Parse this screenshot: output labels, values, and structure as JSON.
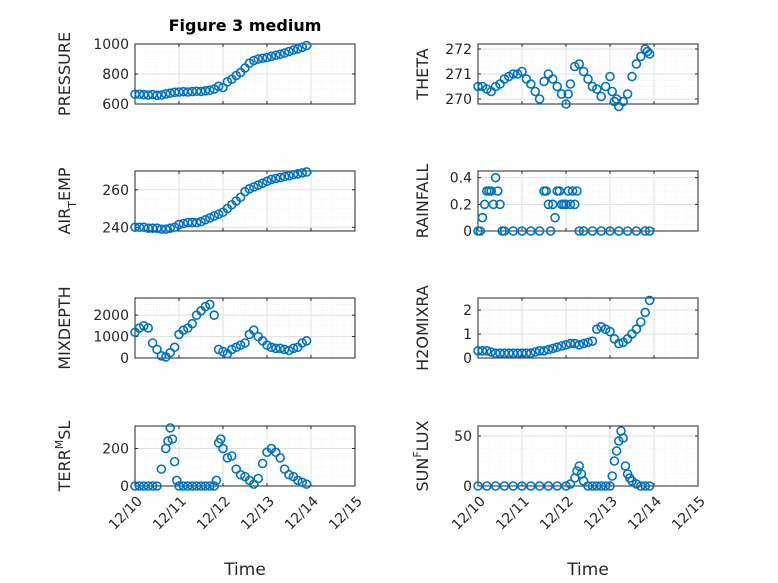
{
  "title": "Figure 3 medium",
  "colors": {
    "marker": "#0072BD",
    "axis": "#262626",
    "grid": "#DFDFDF",
    "minor": "#EDEDED"
  },
  "chart_data": [
    {
      "type": "scatter",
      "id": "pressure",
      "ylabel": "PRESSURE",
      "ylim": [
        600,
        1000
      ],
      "yticks": [
        600,
        800,
        1000
      ],
      "ytick_labels": [
        "600",
        "800",
        "1000"
      ],
      "minor_step": 50,
      "x": [
        0,
        0.1,
        0.2,
        0.3,
        0.4,
        0.5,
        0.6,
        0.7,
        0.8,
        0.9,
        1.0,
        1.1,
        1.2,
        1.3,
        1.4,
        1.5,
        1.6,
        1.7,
        1.8,
        1.9,
        2.0,
        2.1,
        2.2,
        2.3,
        2.4,
        2.5,
        2.6,
        2.7,
        2.8,
        2.9,
        3.0,
        3.1,
        3.2,
        3.3,
        3.4,
        3.5,
        3.6,
        3.7,
        3.8,
        3.9
      ],
      "y": [
        665,
        665,
        662,
        660,
        663,
        658,
        660,
        667,
        672,
        678,
        680,
        682,
        680,
        683,
        685,
        684,
        688,
        692,
        700,
        718,
        710,
        748,
        765,
        790,
        810,
        840,
        872,
        890,
        900,
        905,
        910,
        918,
        925,
        932,
        940,
        950,
        960,
        968,
        978,
        990
      ]
    },
    {
      "type": "scatter",
      "id": "theta",
      "ylabel": "THETA",
      "ylim": [
        269.8,
        272.2
      ],
      "yticks": [
        270,
        271,
        272
      ],
      "ytick_labels": [
        "270",
        "271",
        "272"
      ],
      "minor_step": 0.25,
      "x": [
        0,
        0.1,
        0.2,
        0.3,
        0.4,
        0.5,
        0.6,
        0.7,
        0.8,
        0.9,
        1.0,
        1.1,
        1.2,
        1.3,
        1.4,
        1.5,
        1.6,
        1.7,
        1.8,
        1.9,
        2.0,
        2.05,
        2.1,
        2.2,
        2.3,
        2.4,
        2.5,
        2.6,
        2.7,
        2.8,
        2.9,
        3.0,
        3.05,
        3.1,
        3.15,
        3.2,
        3.3,
        3.4,
        3.5,
        3.6,
        3.7,
        3.8,
        3.85,
        3.9
      ],
      "y": [
        270.5,
        270.5,
        270.4,
        270.3,
        270.5,
        270.6,
        270.8,
        270.9,
        271.0,
        271.0,
        271.1,
        270.8,
        270.6,
        270.3,
        270.0,
        270.7,
        271.0,
        270.8,
        270.5,
        270.2,
        269.8,
        270.2,
        270.6,
        271.3,
        271.4,
        271.1,
        270.8,
        270.5,
        270.4,
        270.1,
        270.5,
        270.9,
        270.3,
        269.9,
        270.0,
        269.7,
        269.9,
        270.2,
        270.9,
        271.4,
        271.7,
        272.0,
        271.9,
        271.8
      ]
    },
    {
      "type": "scatter",
      "id": "air-temp",
      "ylabel": "AIR_TEMP",
      "ylim": [
        238,
        270
      ],
      "yticks": [
        240,
        260
      ],
      "ytick_labels": [
        "240",
        "260"
      ],
      "minor_step": 5,
      "x": [
        0,
        0.1,
        0.2,
        0.3,
        0.4,
        0.5,
        0.6,
        0.7,
        0.8,
        0.9,
        1.0,
        1.1,
        1.2,
        1.3,
        1.4,
        1.5,
        1.6,
        1.7,
        1.8,
        1.9,
        2.0,
        2.1,
        2.2,
        2.3,
        2.4,
        2.5,
        2.6,
        2.7,
        2.8,
        2.9,
        3.0,
        3.1,
        3.2,
        3.3,
        3.4,
        3.5,
        3.6,
        3.7,
        3.8,
        3.9
      ],
      "y": [
        240,
        240,
        240,
        239.5,
        239.5,
        239.5,
        239,
        239,
        239.5,
        240,
        241.5,
        242,
        242.5,
        242.5,
        242.5,
        243,
        244,
        245,
        246,
        247,
        248,
        250,
        252,
        254,
        256,
        259,
        260.5,
        261.5,
        262.5,
        263.5,
        264.5,
        265.5,
        266,
        266.5,
        267,
        267.5,
        268,
        268.5,
        269,
        269.5
      ]
    },
    {
      "type": "scatter",
      "id": "rainfall",
      "ylabel": "RAINFALL",
      "ylim": [
        0,
        0.45
      ],
      "yticks": [
        0,
        0.2,
        0.4
      ],
      "ytick_labels": [
        "0",
        "0.2",
        "0.4"
      ],
      "minor_step": 0.05,
      "x": [
        0,
        0.05,
        0.1,
        0.15,
        0.2,
        0.25,
        0.3,
        0.35,
        0.4,
        0.45,
        0.5,
        0.55,
        0.6,
        0.8,
        1.0,
        1.2,
        1.4,
        1.5,
        1.55,
        1.6,
        1.65,
        1.7,
        1.75,
        1.8,
        1.85,
        1.9,
        1.95,
        2.0,
        2.05,
        2.1,
        2.15,
        2.2,
        2.25,
        2.3,
        2.4,
        2.6,
        2.8,
        3.0,
        3.2,
        3.4,
        3.6,
        3.8,
        3.9
      ],
      "y": [
        0,
        0,
        0.1,
        0.2,
        0.3,
        0.3,
        0.3,
        0.2,
        0.4,
        0.3,
        0.2,
        0,
        0,
        0,
        0,
        0,
        0,
        0.3,
        0.3,
        0.2,
        0,
        0.2,
        0.1,
        0.3,
        0.3,
        0.2,
        0.2,
        0.2,
        0.3,
        0.2,
        0.3,
        0.2,
        0.3,
        0,
        0,
        0,
        0,
        0,
        0,
        0,
        0,
        0,
        0
      ]
    },
    {
      "type": "scatter",
      "id": "mixdepth",
      "ylabel": "MIXDEPTH",
      "ylim": [
        0,
        2800
      ],
      "yticks": [
        0,
        1000,
        2000
      ],
      "ytick_labels": [
        "0",
        "1000",
        "2000"
      ],
      "minor_step": 250,
      "x": [
        0,
        0.1,
        0.2,
        0.3,
        0.4,
        0.5,
        0.6,
        0.7,
        0.8,
        0.9,
        1.0,
        1.1,
        1.2,
        1.3,
        1.4,
        1.5,
        1.6,
        1.7,
        1.8,
        1.9,
        2.0,
        2.1,
        2.2,
        2.3,
        2.4,
        2.5,
        2.6,
        2.7,
        2.8,
        2.9,
        3.0,
        3.1,
        3.2,
        3.3,
        3.4,
        3.5,
        3.6,
        3.7,
        3.8,
        3.9
      ],
      "y": [
        1200,
        1400,
        1500,
        1400,
        700,
        400,
        100,
        50,
        250,
        500,
        1100,
        1300,
        1400,
        1600,
        2000,
        2200,
        2400,
        2500,
        2000,
        400,
        300,
        200,
        400,
        500,
        600,
        700,
        1100,
        1300,
        1000,
        800,
        600,
        500,
        450,
        450,
        400,
        350,
        450,
        500,
        700,
        800
      ]
    },
    {
      "type": "scatter",
      "id": "h2omixra",
      "ylabel": "H2OMIXRA",
      "ylim": [
        0,
        2.5
      ],
      "yticks": [
        0,
        1,
        2
      ],
      "ytick_labels": [
        "0",
        "1",
        "2"
      ],
      "minor_step": 0.25,
      "x": [
        0,
        0.1,
        0.2,
        0.3,
        0.4,
        0.5,
        0.6,
        0.7,
        0.8,
        0.9,
        1.0,
        1.1,
        1.2,
        1.3,
        1.4,
        1.5,
        1.6,
        1.7,
        1.8,
        1.9,
        2.0,
        2.1,
        2.2,
        2.3,
        2.4,
        2.5,
        2.6,
        2.7,
        2.8,
        2.9,
        3.0,
        3.1,
        3.2,
        3.3,
        3.4,
        3.5,
        3.6,
        3.7,
        3.8,
        3.9
      ],
      "y": [
        0.3,
        0.3,
        0.3,
        0.25,
        0.2,
        0.2,
        0.2,
        0.2,
        0.2,
        0.2,
        0.2,
        0.2,
        0.2,
        0.25,
        0.3,
        0.3,
        0.35,
        0.4,
        0.45,
        0.5,
        0.55,
        0.6,
        0.6,
        0.55,
        0.6,
        0.65,
        0.7,
        1.2,
        1.3,
        1.2,
        1.1,
        0.8,
        0.6,
        0.65,
        0.8,
        1.0,
        1.2,
        1.5,
        1.9,
        2.4
      ]
    },
    {
      "type": "scatter",
      "id": "terr-msl",
      "ylabel": "TERR_MSL",
      "ylim": [
        0,
        320
      ],
      "yticks": [
        0,
        200
      ],
      "ytick_labels": [
        "0",
        "200"
      ],
      "minor_step": 50,
      "x": [
        0,
        0.1,
        0.2,
        0.3,
        0.4,
        0.5,
        0.6,
        0.7,
        0.75,
        0.8,
        0.85,
        0.9,
        0.95,
        1.0,
        1.1,
        1.2,
        1.3,
        1.4,
        1.5,
        1.6,
        1.7,
        1.8,
        1.85,
        1.9,
        1.95,
        2.0,
        2.1,
        2.2,
        2.3,
        2.4,
        2.5,
        2.6,
        2.7,
        2.8,
        2.9,
        3.0,
        3.1,
        3.2,
        3.3,
        3.4,
        3.5,
        3.6,
        3.7,
        3.8,
        3.9
      ],
      "y": [
        0,
        0,
        0,
        0,
        0,
        0,
        90,
        200,
        240,
        310,
        250,
        130,
        30,
        0,
        0,
        0,
        0,
        0,
        0,
        0,
        0,
        0,
        30,
        230,
        250,
        200,
        150,
        160,
        90,
        60,
        50,
        30,
        10,
        40,
        120,
        180,
        200,
        180,
        150,
        90,
        60,
        50,
        30,
        20,
        10
      ]
    },
    {
      "type": "scatter",
      "id": "sun-flux",
      "ylabel": "SUN_FLUX",
      "ylim": [
        0,
        60
      ],
      "yticks": [
        0,
        50
      ],
      "ytick_labels": [
        "0",
        "50"
      ],
      "minor_step": 12.5,
      "x": [
        0,
        0.2,
        0.4,
        0.6,
        0.8,
        1.0,
        1.2,
        1.4,
        1.6,
        1.8,
        2.0,
        2.1,
        2.2,
        2.25,
        2.3,
        2.35,
        2.4,
        2.5,
        2.6,
        2.7,
        2.8,
        2.9,
        3.0,
        3.05,
        3.1,
        3.15,
        3.2,
        3.25,
        3.3,
        3.35,
        3.4,
        3.45,
        3.5,
        3.6,
        3.7,
        3.8,
        3.9
      ],
      "y": [
        0,
        0,
        0,
        0,
        0,
        0,
        0,
        0,
        0,
        0,
        0,
        2,
        8,
        15,
        20,
        12,
        5,
        0,
        0,
        0,
        0,
        0,
        0,
        10,
        25,
        35,
        45,
        55,
        48,
        20,
        12,
        8,
        5,
        2,
        0,
        0,
        0
      ]
    }
  ],
  "panels": [
    {
      "ylabel": {
        "main": "PRESSURE"
      }
    },
    {
      "ylabel": {
        "main": "THETA"
      }
    },
    {
      "ylabel": {
        "pre": "AIR",
        "sub": "T",
        "post": "EMP"
      }
    },
    {
      "ylabel": {
        "main": "RAINFALL"
      }
    },
    {
      "ylabel": {
        "main": "MIXDEPTH"
      }
    },
    {
      "ylabel": {
        "main": "H2OMIXRA"
      }
    },
    {
      "ylabel": {
        "pre": "TERR",
        "sub": "M",
        "post": "SL",
        "sup": true
      }
    },
    {
      "ylabel": {
        "pre": "SUN",
        "sub": "F",
        "post": "LUX",
        "sup": true
      }
    }
  ],
  "xaxis": {
    "ticks": [
      0,
      1,
      2,
      3,
      4,
      5
    ],
    "labels": [
      "12/10",
      "12/11",
      "12/12",
      "12/13",
      "12/14",
      "12/15"
    ],
    "xlabel": "Time"
  }
}
